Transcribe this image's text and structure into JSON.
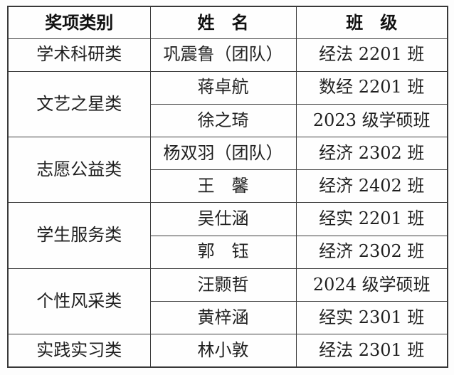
{
  "table": {
    "colors": {
      "border": "#3d3d3d",
      "outer_border": "#383838",
      "text": "#1f1f1f",
      "background": "#fefefe"
    },
    "headers": [
      {
        "label": "奖项类别"
      },
      {
        "label": "姓　名"
      },
      {
        "label": "班　级"
      }
    ],
    "groups": [
      {
        "category": "学术科研类",
        "entries": [
          {
            "name": "巩震鲁（团队）",
            "class": "经法 2201 班"
          }
        ]
      },
      {
        "category": "文艺之星类",
        "entries": [
          {
            "name": "蒋卓航",
            "class": "数经 2201 班"
          },
          {
            "name": "徐之琦",
            "class": "2023 级学硕班"
          }
        ]
      },
      {
        "category": "志愿公益类",
        "entries": [
          {
            "name": "杨双羽（团队）",
            "class": "经济 2302 班"
          },
          {
            "name": "王　馨",
            "class": "经济 2402 班"
          }
        ]
      },
      {
        "category": "学生服务类",
        "entries": [
          {
            "name": "吴仕涵",
            "class": "经实 2201 班"
          },
          {
            "name": "郭　钰",
            "class": "经济 2302 班"
          }
        ]
      },
      {
        "category": "个性风采类",
        "entries": [
          {
            "name": "汪颢哲",
            "class": "2024 级学硕班"
          },
          {
            "name": "黄梓涵",
            "class": "经实 2301 班"
          }
        ]
      },
      {
        "category": "实践实习类",
        "entries": [
          {
            "name": "林小敦",
            "class": "经法 2301 班"
          }
        ]
      }
    ]
  }
}
